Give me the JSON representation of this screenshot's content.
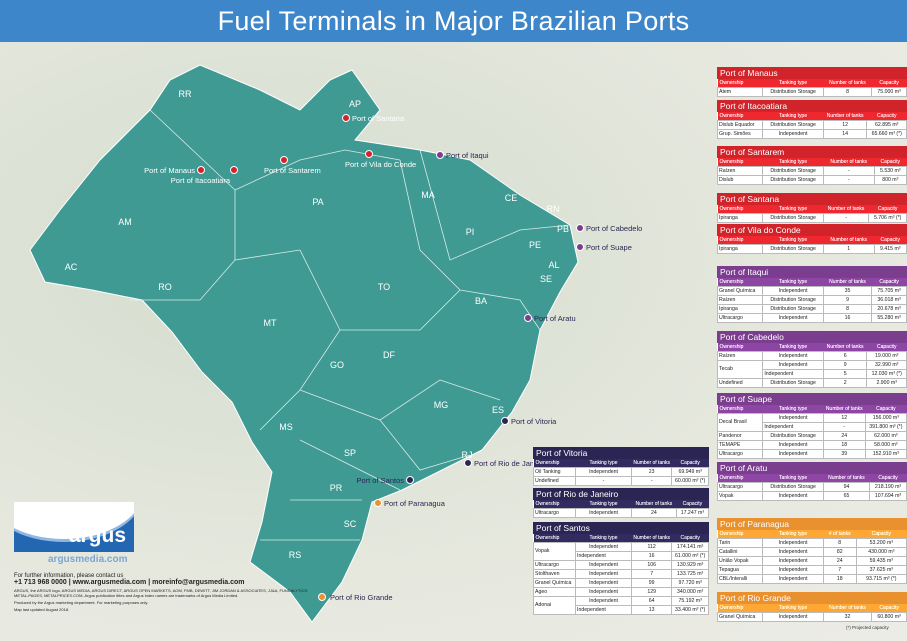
{
  "title": "Fuel Terminals in Major Brazilian Ports",
  "colors": {
    "north": "#d0232a",
    "northeast": "#7b3d8e",
    "southeast": "#2b2553",
    "south": "#e8912e",
    "land": "#3f9a94",
    "title_bar": "#3d86c9"
  },
  "columns": [
    "Ownership",
    "Tanking type",
    "Number of tanks",
    "Capacity"
  ],
  "states": [
    [
      "RR",
      185,
      97
    ],
    [
      "AP",
      355,
      107
    ],
    [
      "AM",
      125,
      225
    ],
    [
      "PA",
      318,
      205
    ],
    [
      "MA",
      428,
      198
    ],
    [
      "CE",
      511,
      201
    ],
    [
      "RN",
      553,
      212
    ],
    [
      "PB",
      563,
      232
    ],
    [
      "PE",
      535,
      248
    ],
    [
      "AL",
      554,
      268
    ],
    [
      "SE",
      546,
      282
    ],
    [
      "PI",
      470,
      235
    ],
    [
      "AC",
      71,
      270
    ],
    [
      "RO",
      165,
      290
    ],
    [
      "TO",
      384,
      290
    ],
    [
      "BA",
      481,
      304
    ],
    [
      "MT",
      270,
      326
    ],
    [
      "GO",
      337,
      368
    ],
    [
      "DF",
      389,
      358
    ],
    [
      "MG",
      441,
      408
    ],
    [
      "ES",
      498,
      413
    ],
    [
      "MS",
      286,
      430
    ],
    [
      "SP",
      350,
      456
    ],
    [
      "RJ",
      467,
      458
    ],
    [
      "PR",
      336,
      491
    ],
    [
      "SC",
      350,
      527
    ],
    [
      "RS",
      295,
      558
    ]
  ],
  "ports": [
    {
      "name": "Port of Santana",
      "group": "north"
    },
    {
      "name": "Port of Manaus",
      "group": "north"
    },
    {
      "name": "Port of Itacoatiara",
      "group": "north"
    },
    {
      "name": "Port of Santarem",
      "group": "north"
    },
    {
      "name": "Port of Vila do Conde",
      "group": "north"
    },
    {
      "name": "Port of Itaqui",
      "group": "northeast"
    },
    {
      "name": "Port of Cabedelo",
      "group": "northeast"
    },
    {
      "name": "Port of Suape",
      "group": "northeast"
    },
    {
      "name": "Port of Aratu",
      "group": "northeast"
    },
    {
      "name": "Port of Vitoria",
      "group": "southeast"
    },
    {
      "name": "Port of Rio de Janeiro",
      "group": "southeast"
    },
    {
      "name": "Port of Santos",
      "group": "southeast"
    },
    {
      "name": "Port of Paranagua",
      "group": "south"
    },
    {
      "name": "Port of Rio Grande",
      "group": "south"
    }
  ],
  "tables": [
    {
      "title": "Port of Manaus",
      "group": "north",
      "rows": [
        [
          "Atem",
          "Distribution Storage",
          "8",
          "75.000 m³"
        ]
      ]
    },
    {
      "title": "Port of Itacoatiara",
      "group": "north",
      "rows": [
        [
          "Dislub Equador",
          "Distribution Storage",
          "12",
          "62.895 m³"
        ],
        [
          "Grup. Simões",
          "Independent",
          "14",
          "65.660 m³ (*)"
        ]
      ]
    },
    {
      "title": "Port of Santarem",
      "group": "north",
      "rows": [
        [
          "Raízen",
          "Distribution Storage",
          "-",
          "5.530 m³"
        ],
        [
          "Dislub",
          "Distribution Storage",
          "-",
          "800 m³"
        ]
      ]
    },
    {
      "title": "Port of Santana",
      "group": "north",
      "rows": [
        [
          "Ipiranga",
          "Distribution Storage",
          "-",
          "5.706 m³ (*)"
        ]
      ]
    },
    {
      "title": "Port of Vila do Conde",
      "group": "north",
      "rows": [
        [
          "Ipiranga",
          "Distribution Storage",
          "1",
          "9.415 m³"
        ]
      ]
    },
    {
      "title": "Port of Itaqui",
      "group": "northeast",
      "rows": [
        [
          "Granel Química",
          "Independent",
          "35",
          "75.705 m³"
        ],
        [
          "Raízen",
          "Distribution Storage",
          "9",
          "36.018 m³"
        ],
        [
          "Ipiranga",
          "Distribution Storage",
          "8",
          "20.678 m³"
        ],
        [
          "Ultracargo",
          "Independent",
          "16",
          "55.280 m³"
        ]
      ]
    },
    {
      "title": "Port of Cabedelo",
      "group": "northeast",
      "rows": [
        [
          "Raízen",
          "Independent",
          "6",
          "19.000 m³"
        ],
        [
          "Tecab",
          "Independent",
          "9",
          "32.990 m³"
        ],
        [
          "",
          "Independent",
          "5",
          "12.030 m³ (*)"
        ],
        [
          "Undefined",
          "Distribution Storage",
          "2",
          "2.900 m³"
        ]
      ]
    },
    {
      "title": "Port of Suape",
      "group": "northeast",
      "rows": [
        [
          "Decal Brasil",
          "Independent",
          "12",
          "156.000 m³"
        ],
        [
          "",
          "Independent",
          "-",
          "391.800 m³ (*)"
        ],
        [
          "Pandenor",
          "Distribution Storage",
          "24",
          "62.000 m³"
        ],
        [
          "TEMAPE",
          "Independent",
          "18",
          "58.000 m³"
        ],
        [
          "Ultracargo",
          "Independent",
          "39",
          "152.910 m³"
        ]
      ]
    },
    {
      "title": "Port of Aratu",
      "group": "northeast",
      "rows": [
        [
          "Ultracargo",
          "Distribution Storage",
          "94",
          "218.190 m³"
        ],
        [
          "Vopak",
          "Independent",
          "65",
          "107.694 m³"
        ]
      ]
    },
    {
      "title": "Port of Paranagua",
      "group": "south",
      "columns": [
        "Ownership",
        "Tanking type",
        "# of tanks",
        "Capacity"
      ],
      "rows": [
        [
          "Tarin",
          "Independent",
          "8",
          "53.200 m³"
        ],
        [
          "Catallini",
          "Independent",
          "82",
          "430.000 m³"
        ],
        [
          "União Vopak",
          "Independent",
          "24",
          "59.435 m³"
        ],
        [
          "Tepagua",
          "Independent",
          "7",
          "37.625 m³"
        ],
        [
          "CBL/Interalli",
          "Independent",
          "18",
          "93.715 m³ (*)"
        ]
      ]
    },
    {
      "title": "Port of Rio Grande",
      "group": "south",
      "rows": [
        [
          "Granel Química",
          "Independent",
          "32",
          "60.800 m³"
        ]
      ]
    },
    {
      "title": "Port of Vitoria",
      "group": "southeast",
      "rows": [
        [
          "Oil Tanking",
          "Independent",
          "23",
          "69.949 m³"
        ],
        [
          "Undefined",
          "-",
          "-",
          "60.000 m³ (*)"
        ]
      ]
    },
    {
      "title": "Port of Rio de Janeiro",
      "group": "southeast",
      "rows": [
        [
          "Ultracargo",
          "Independent",
          "24",
          "17.247 m³"
        ]
      ]
    },
    {
      "title": "Port of Santos",
      "group": "southeast",
      "rows": [
        [
          "Vopak",
          "Independent",
          "112",
          "174.141 m³"
        ],
        [
          "",
          "Independent",
          "16",
          "61.000 m³ (*)"
        ],
        [
          "Ultracargo",
          "Independent",
          "106",
          "130.929 m³"
        ],
        [
          "Stolthaven",
          "Independent",
          "7",
          "133.725 m³"
        ],
        [
          "Granel Química",
          "Independent",
          "99",
          "97.720 m³"
        ],
        [
          "Ageo",
          "Independent",
          "129",
          "340.000 m³"
        ],
        [
          "Adonai",
          "Independent",
          "64",
          "75.192 m³"
        ],
        [
          "",
          "Independent",
          "13",
          "33.400 m³ (*)"
        ]
      ]
    }
  ],
  "footnote": "(*) Projected capacity",
  "brand": {
    "logo": "argus",
    "site": "argusmedia.com"
  },
  "contact": {
    "line1": "For further information, please contact us",
    "line2": "+1 713 968 0000 | www.argusmedia.com | moreinfo@argusmedia.com",
    "legal": "ARGUS, the ARGUS logo, ARGUS MEDIA, ARGUS DIRECT, ARGUS OPEN MARKETS, AOM, FMB, DEWITT, JIM JORDAN & ASSOCIATES, JJ&A, FUNDALYTICS, METAL-PAGES, METALPRICES.COM, Argus publication titles and Argus index names are trademarks of Argus Media Limited.",
    "produced": "Produced by the Argus marketing department. For marketing purposes only.",
    "updated": "Map last updated August 2018."
  }
}
